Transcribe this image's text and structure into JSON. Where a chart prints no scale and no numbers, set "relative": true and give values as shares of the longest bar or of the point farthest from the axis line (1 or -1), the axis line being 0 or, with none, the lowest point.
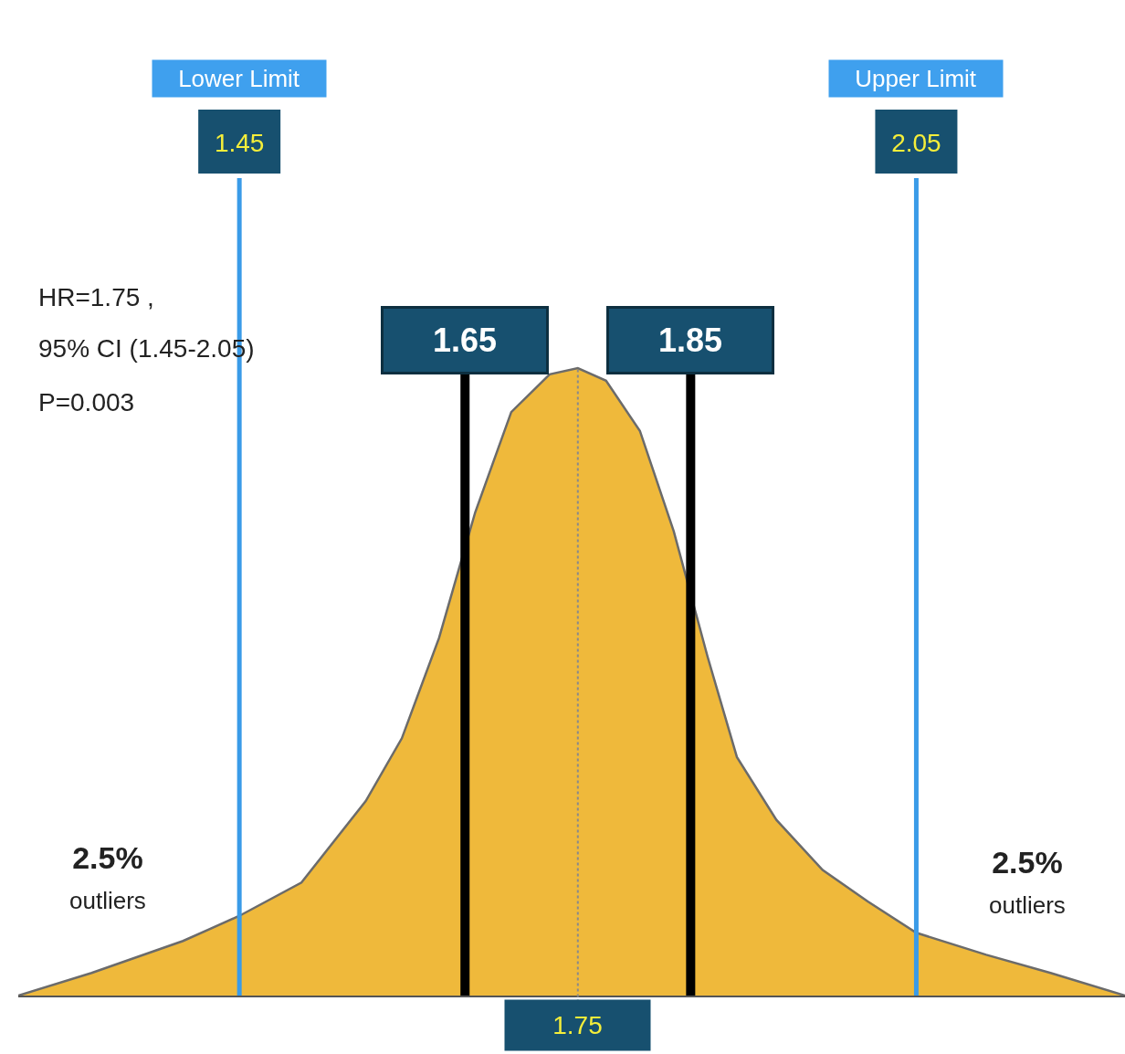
{
  "chart_data": {
    "type": "area",
    "relative": true,
    "grid": false,
    "xlim": [
      1.254,
      2.235
    ],
    "xticks": [
      1.45,
      2.05
    ],
    "x": [
      1.254,
      1.319,
      1.4,
      1.45,
      1.505,
      1.562,
      1.594,
      1.627,
      1.659,
      1.691,
      1.725,
      1.75,
      1.775,
      1.805,
      1.835,
      1.865,
      1.891,
      1.926,
      1.967,
      2.007,
      2.05,
      2.112,
      2.169,
      2.235
    ],
    "series": [
      {
        "color": "#efb93b",
        "values": [
          0,
          0.036,
          0.087,
          0.127,
          0.18,
          0.31,
          0.41,
          0.57,
          0.77,
          0.93,
          0.99,
          1,
          0.98,
          0.9,
          0.74,
          0.54,
          0.38,
          0.28,
          0.2,
          0.15,
          0.1,
          0.065,
          0.036,
          0
        ]
      }
    ],
    "ref_lines": [
      {
        "axis": "x",
        "value": 1.45,
        "label": null,
        "color": "#3a9be8",
        "line_style": "solid"
      },
      {
        "axis": "x",
        "value": 2.05,
        "label": null,
        "color": "#3a9be8",
        "line_style": "solid"
      },
      {
        "axis": "x",
        "value": 1.65,
        "label": "1.65",
        "color": "#000000",
        "line_style": "solid"
      },
      {
        "axis": "x",
        "value": 1.85,
        "label": "1.85",
        "color": "#000000",
        "line_style": "solid"
      },
      {
        "axis": "x",
        "value": 1.75,
        "label": "1.75",
        "color": "#8a8a8a",
        "line_style": "dotted"
      }
    ],
    "annotations": [
      "Lower Limit",
      "Upper Limit",
      "HR=1.75 ,",
      "95% CI (1.45-2.05)",
      "P=0.003",
      "2.5%\noutliers",
      "2.5%\noutliers"
    ]
  }
}
